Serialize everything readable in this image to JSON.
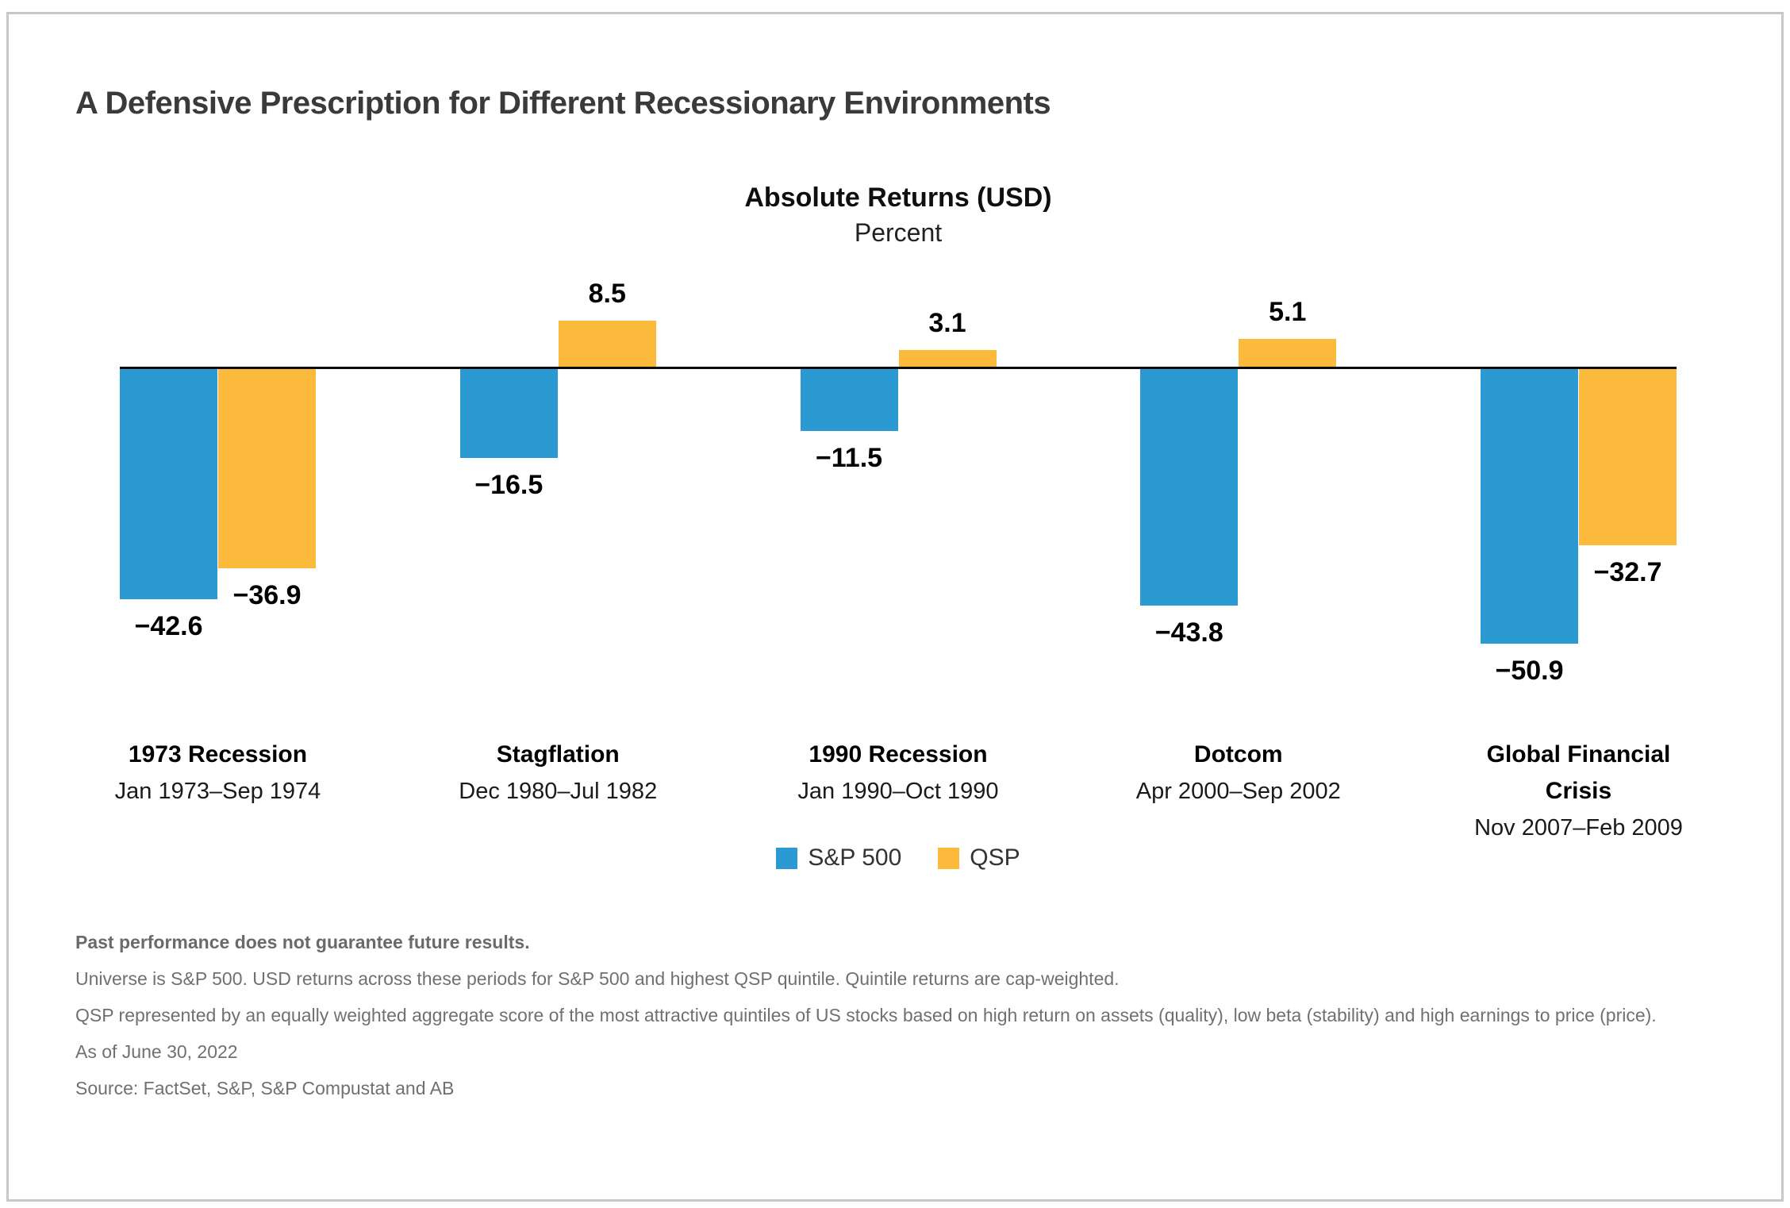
{
  "title": "A Defensive Prescription for Different Recessionary Environments",
  "chart_data": {
    "type": "bar",
    "title": "Absolute Returns (USD)",
    "units": "Percent",
    "categories": [
      "1973 Recession",
      "Stagflation",
      "1990 Recession",
      "Dotcom",
      "Global Financial Crisis"
    ],
    "category_periods": [
      "Jan 1973–Sep 1974",
      "Dec 1980–Jul 1982",
      "Jan 1990–Oct 1990",
      "Apr 2000–Sep 2002",
      "Nov 2007–Feb 2009"
    ],
    "series": [
      {
        "name": "S&P 500",
        "color": "#2b9ad3",
        "values": [
          -42.6,
          -16.5,
          -11.5,
          -43.8,
          -50.9
        ],
        "value_labels": [
          "−42.6",
          "−16.5",
          "−11.5",
          "−43.8",
          "−50.9"
        ]
      },
      {
        "name": "QSP",
        "color": "#fcba3d",
        "values": [
          -36.9,
          8.5,
          3.1,
          5.1,
          -32.7
        ],
        "value_labels": [
          "−36.9",
          "8.5",
          "3.1",
          "5.1",
          "−32.7"
        ]
      }
    ],
    "baseline": 0,
    "grid": false,
    "legend_position": "bottom",
    "axis_line_color": "#0a0a0a"
  },
  "footnotes": [
    "Past performance does not guarantee future results.",
    "Universe is S&P 500. USD returns across these periods for S&P 500 and highest QSP quintile. Quintile returns are cap-weighted.",
    "QSP represented by an equally weighted aggregate score of the most attractive quintiles of US stocks based on high return on assets (quality), low beta (stability) and high earnings to price (price).",
    "As of June 30, 2022",
    "Source: FactSet, S&P, S&P Compustat and AB"
  ],
  "colors": {
    "card_border": "#c8c8c8",
    "title_text": "#3a3a3a",
    "footnote_text": "#707070",
    "sp500_blue": "#2b9ad3",
    "qsp_yellow": "#fcba3d"
  }
}
